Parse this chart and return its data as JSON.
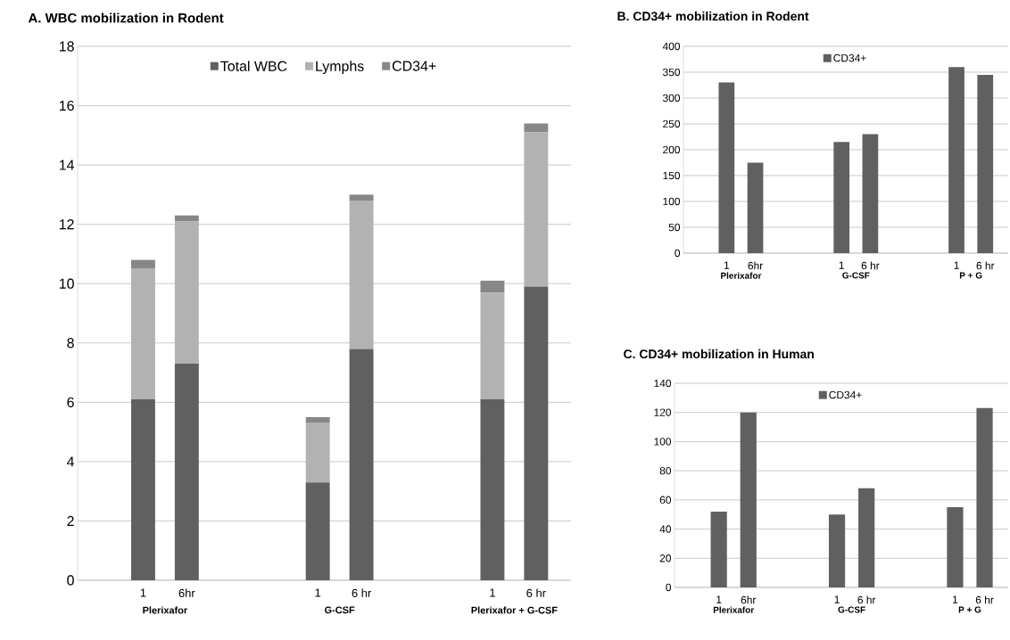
{
  "chart_data": [
    {
      "type": "bar",
      "title": "A. WBC mobilization in Rodent",
      "stacked": true,
      "grid": "y",
      "legend": "top",
      "categories": [
        "1",
        "6hr",
        null,
        null,
        "1",
        "6 hr",
        null,
        null,
        "1",
        "6 hr"
      ],
      "series": [
        {
          "name": "Total WBC",
          "color": "#606060",
          "values": [
            6.1,
            7.3,
            null,
            null,
            3.3,
            7.8,
            null,
            null,
            6.1,
            9.9
          ]
        },
        {
          "name": "Lymphs",
          "color": "#b2b2b2",
          "values": [
            4.4,
            4.8,
            null,
            null,
            2.0,
            5.0,
            null,
            null,
            3.6,
            5.2
          ]
        },
        {
          "name": "CD34+",
          "color": "#878787",
          "values": [
            0.3,
            0.2,
            null,
            null,
            0.2,
            0.2,
            null,
            null,
            0.4,
            0.3
          ]
        }
      ],
      "ylim": [
        0,
        18
      ],
      "yticks": [
        0,
        2,
        4,
        6,
        8,
        10,
        12,
        14,
        16,
        18
      ],
      "annotations": [
        "Plerixafor",
        "G-CSF",
        "Plerixafor + G-CSF"
      ]
    },
    {
      "type": "bar",
      "title": "B. CD34+ mobilization in Rodent",
      "grid": "y",
      "legend": "top",
      "categories": [
        "1",
        "6hr",
        null,
        null,
        "1",
        "6 hr",
        null,
        null,
        "1",
        "6 hr"
      ],
      "series": [
        {
          "name": "CD34+",
          "color": "#606060",
          "values": [
            330,
            175,
            null,
            null,
            215,
            230,
            null,
            null,
            360,
            345
          ]
        }
      ],
      "ylim": [
        0,
        400
      ],
      "yticks": [
        0,
        50,
        100,
        150,
        200,
        250,
        300,
        350,
        400
      ],
      "annotations": [
        "Plerixafor",
        "G-CSF",
        "P + G"
      ]
    },
    {
      "type": "bar",
      "title": "C. CD34+ mobilization in Human",
      "grid": "y",
      "legend": "top",
      "categories": [
        "1",
        "6hr",
        null,
        null,
        "1",
        "6 hr",
        null,
        null,
        "1",
        "6 hr"
      ],
      "series": [
        {
          "name": "CD34+",
          "color": "#606060",
          "values": [
            52,
            120,
            null,
            null,
            50,
            68,
            null,
            null,
            55,
            123
          ]
        }
      ],
      "ylim": [
        0,
        140
      ],
      "yticks": [
        0,
        20,
        40,
        60,
        80,
        100,
        120,
        140
      ],
      "annotations": [
        "Plerixafor",
        "G-CSF",
        "P + G"
      ]
    }
  ]
}
